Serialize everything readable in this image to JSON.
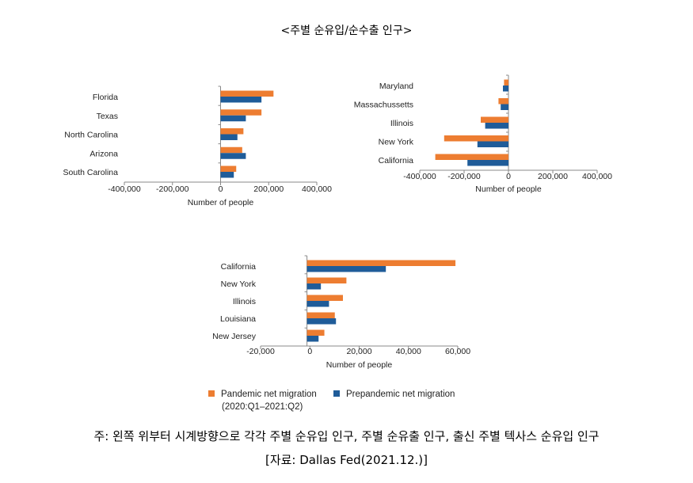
{
  "title": "<주별 순유입/순수출 인구>",
  "legend": {
    "pandemic": "Pandemic net migration",
    "pandemic_period": "(2020:Q1–2021:Q2)",
    "prepandemic": "Prepandemic net migration"
  },
  "note": "주: 왼쪽 위부터 시계방향으로 각각 주별 순유입 인구, 주별 순유출 인구, 출신 주별 텍사스 순유입 인구",
  "source": "[자료: Dallas Fed(2021.12.)]",
  "colors": {
    "pandemic": "#ed7d31",
    "prepandemic": "#1f5c99"
  },
  "chart_data": [
    {
      "type": "bar",
      "orientation": "horizontal",
      "categories": [
        "Florida",
        "Texas",
        "North Carolina",
        "Arizona",
        "South Carolina"
      ],
      "series": [
        {
          "name": "Pandemic net migration",
          "values": [
            220000,
            170000,
            95000,
            90000,
            65000
          ]
        },
        {
          "name": "Prepandemic net migration",
          "values": [
            170000,
            105000,
            70000,
            105000,
            55000
          ]
        }
      ],
      "xlim": [
        -400000,
        400000
      ],
      "xticks": [
        "-400,000",
        "-200,000",
        "0",
        "200,000",
        "400,000"
      ],
      "xlabel": "Number of people"
    },
    {
      "type": "bar",
      "orientation": "horizontal",
      "categories": [
        "Maryland",
        "Massachussetts",
        "Illinois",
        "New York",
        "California"
      ],
      "series": [
        {
          "name": "Pandemic net migration",
          "values": [
            -20000,
            -45000,
            -125000,
            -290000,
            -330000
          ]
        },
        {
          "name": "Prepandemic net migration",
          "values": [
            -25000,
            -35000,
            -105000,
            -140000,
            -185000
          ]
        }
      ],
      "xlim": [
        -400000,
        400000
      ],
      "xticks": [
        "-400,000",
        "-200,000",
        "0",
        "200,000",
        "400,000"
      ],
      "xlabel": "Number of people"
    },
    {
      "type": "bar",
      "orientation": "horizontal",
      "categories": [
        "California",
        "New York",
        "Illinois",
        "Louisiana",
        "New Jersey"
      ],
      "series": [
        {
          "name": "Pandemic net migration",
          "values": [
            64000,
            17000,
            15500,
            12000,
            7500
          ]
        },
        {
          "name": "Prepandemic net migration",
          "values": [
            34000,
            6000,
            9500,
            12500,
            5000
          ]
        }
      ],
      "xlim": [
        -20000,
        65000
      ],
      "xticks": [
        "-20,000",
        "0",
        "20,000",
        "40,000",
        "60,000"
      ],
      "xlabel": "Number of people"
    }
  ]
}
